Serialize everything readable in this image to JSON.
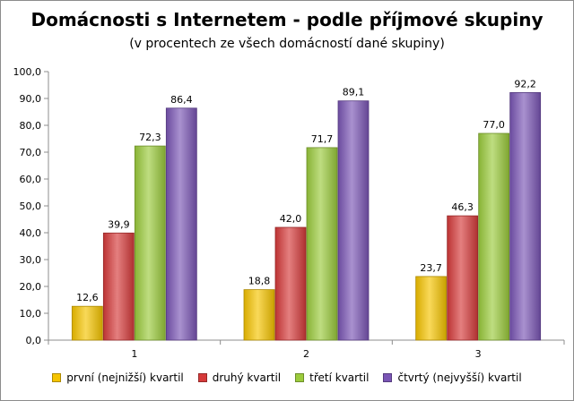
{
  "chart_data": {
    "type": "bar",
    "title": "Domácnosti s Internetem - podle příjmové skupiny",
    "subtitle": "(v procentech ze všech domácností dané skupiny)",
    "xlabel": "",
    "ylabel": "",
    "ylim": [
      0,
      100
    ],
    "ytick_step": 10,
    "ytick_labels": [
      "0,0",
      "10,0",
      "20,0",
      "30,0",
      "40,0",
      "50,0",
      "60,0",
      "70,0",
      "80,0",
      "90,0",
      "100,0"
    ],
    "grid": false,
    "legend_position": "bottom",
    "categories": [
      "1",
      "2",
      "3"
    ],
    "series": [
      {
        "name": "první (nejnižší) kvartil",
        "color": "#f5c400",
        "values": [
          12.6,
          18.8,
          23.7
        ],
        "labels": [
          "12,6",
          "18,8",
          "23,7"
        ]
      },
      {
        "name": "druhý kvartil",
        "color": "#d63a3a",
        "values": [
          39.9,
          42.0,
          46.3
        ],
        "labels": [
          "39,9",
          "42,0",
          "46,3"
        ]
      },
      {
        "name": "třetí kvartil",
        "color": "#9bcb3c",
        "values": [
          72.3,
          71.7,
          77.0
        ],
        "labels": [
          "72,3",
          "71,7",
          "77,0"
        ]
      },
      {
        "name": "čtvrtý (nejvyšší) kvartil",
        "color": "#7a55b5",
        "values": [
          86.4,
          89.1,
          92.2
        ],
        "labels": [
          "86,4",
          "89,1",
          "92,2"
        ]
      }
    ]
  }
}
